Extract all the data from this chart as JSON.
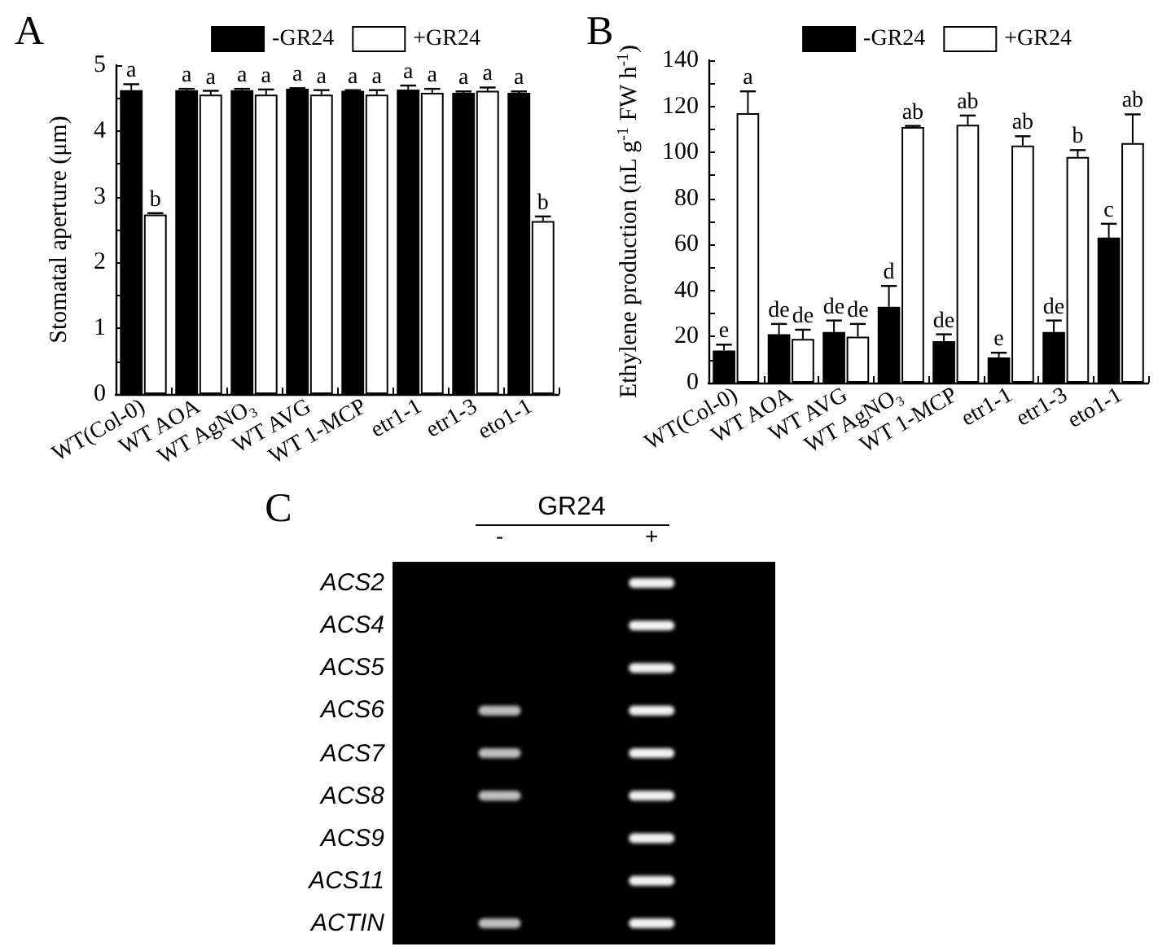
{
  "chart_data": [
    {
      "type": "bar",
      "title": "A",
      "ylabel": "Stomatal aperture (μm)",
      "categories": [
        "WT(Col-0)",
        "WT AOA",
        "WT AgNO₃",
        "WT AVG",
        "WT 1-MCP",
        "etr1-1",
        "etr1-3",
        "eto1-1"
      ],
      "series": [
        {
          "name": "-GR24",
          "color": "#000000",
          "values": [
            4.62,
            4.62,
            4.62,
            4.64,
            4.61,
            4.63,
            4.58,
            4.58
          ],
          "errors": [
            [
              4.62,
              4.71
            ],
            [
              4.62,
              4.64
            ],
            [
              4.62,
              4.64
            ],
            [
              4.64,
              4.65
            ],
            [
              4.61,
              4.62
            ],
            [
              4.63,
              4.69
            ],
            [
              4.58,
              4.6
            ],
            [
              4.58,
              4.6
            ]
          ],
          "value_labels": [
            "a",
            "a",
            "a",
            "a",
            "a",
            "a",
            "a",
            "a"
          ]
        },
        {
          "name": "+GR24",
          "color": "#ffffff",
          "values": [
            2.73,
            4.55,
            4.55,
            4.55,
            4.55,
            4.58,
            4.61,
            2.63
          ],
          "errors": [
            [
              2.73,
              2.75
            ],
            [
              4.55,
              4.61
            ],
            [
              4.55,
              4.63
            ],
            [
              4.55,
              4.62
            ],
            [
              4.55,
              4.62
            ],
            [
              4.58,
              4.64
            ],
            [
              4.61,
              4.66
            ],
            [
              2.63,
              2.7
            ]
          ],
          "value_labels": [
            "b",
            "a",
            "a",
            "a",
            "a",
            "a",
            "a",
            "b"
          ]
        }
      ],
      "ylim": [
        0,
        5
      ],
      "yticks": [
        0,
        {
          "value": 0.5,
          "label": null
        },
        1,
        {
          "value": 1.5,
          "label": null
        },
        2,
        {
          "value": 2.5,
          "label": null
        },
        3,
        {
          "value": 3.5,
          "label": null
        },
        4,
        {
          "value": 4.5,
          "label": null
        },
        5
      ],
      "legend": "top"
    },
    {
      "type": "bar",
      "title": "B",
      "ylabel": "Ethylene production (nL g$^{-1}$ FW h$^{-1}$)",
      "categories": [
        "WT(Col-0)",
        "WT AOA",
        "WT AVG",
        "WT AgNO₃",
        "WT 1-MCP",
        "etr1-1",
        "etr1-3",
        "eto1-1"
      ],
      "series": [
        {
          "name": "-GR24",
          "color": "#000000",
          "values": [
            14,
            21,
            22,
            33,
            18,
            11,
            22,
            63
          ],
          "errors": [
            [
              14,
              16.5
            ],
            [
              21,
              25.5
            ],
            [
              22,
              27
            ],
            [
              33,
              42
            ],
            [
              18,
              21
            ],
            [
              11,
              13
            ],
            [
              22,
              27
            ],
            [
              63,
              69
            ]
          ],
          "value_labels": [
            "e",
            "de",
            "de",
            "d",
            "de",
            "e",
            "de",
            "c"
          ]
        },
        {
          "name": "+GR24",
          "color": "#ffffff",
          "values": [
            117,
            19,
            20,
            111,
            112,
            103,
            98,
            104
          ],
          "errors": [
            [
              117,
              126.5
            ],
            [
              19,
              23
            ],
            [
              20,
              25.5
            ],
            [
              111,
              111.5
            ],
            [
              112,
              116
            ],
            [
              103,
              107
            ],
            [
              98,
              101
            ],
            [
              104,
              116.5
            ]
          ],
          "value_labels": [
            "a",
            "de",
            "de",
            "ab",
            "ab",
            "ab",
            "b",
            "ab"
          ]
        }
      ],
      "ylim": [
        0,
        140
      ],
      "yticks": [
        0,
        {
          "value": 10,
          "label": null
        },
        20,
        {
          "value": 30,
          "label": null
        },
        40,
        {
          "value": 50,
          "label": null
        },
        60,
        {
          "value": 70,
          "label": null
        },
        80,
        {
          "value": 90,
          "label": null
        },
        100,
        {
          "value": 110,
          "label": null
        },
        120,
        {
          "value": 130,
          "label": null
        },
        140
      ],
      "legend": "top"
    },
    {
      "type": "other",
      "title": "C",
      "xlabel": "GR24",
      "categories": [
        "-",
        "+"
      ],
      "y_categories": [
        "ACS2",
        "ACS4",
        "ACS5",
        "ACS6",
        "ACS7",
        "ACS8",
        "ACS9",
        "ACS11",
        "ACTIN"
      ]
    }
  ]
}
